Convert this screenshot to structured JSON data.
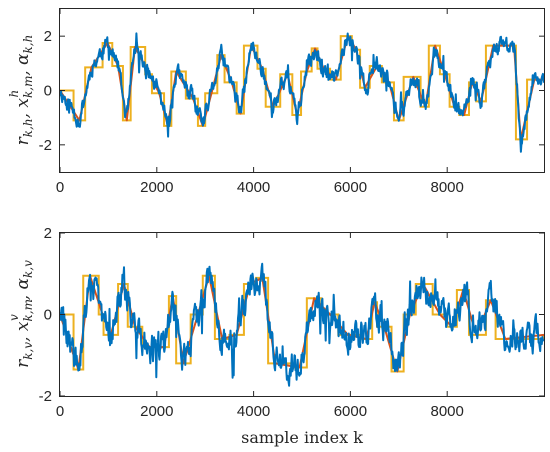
{
  "chart_data": [
    {
      "type": "line",
      "ylabel": "r_{k,h}, x^h_{k,m}, α_{k,h}",
      "xlabel": "",
      "xlim": [
        0,
        10000
      ],
      "ylim": [
        -3,
        3
      ],
      "xticks": [
        "0",
        "2000",
        "4000",
        "6000",
        "8000"
      ],
      "yticks": [
        "-2",
        "0",
        "2"
      ],
      "grid": false,
      "legend": "none",
      "series": [
        {
          "role": "reference (step)",
          "color": "#EDB120",
          "steps": [
            [
              0,
              0
            ],
            [
              280,
              -1.1
            ],
            [
              520,
              0.85
            ],
            [
              880,
              1.75
            ],
            [
              1080,
              0.9
            ],
            [
              1300,
              -1.1
            ],
            [
              1460,
              1.6
            ],
            [
              1760,
              0.6
            ],
            [
              1900,
              -0.1
            ],
            [
              2150,
              -1.3
            ],
            [
              2300,
              0.7
            ],
            [
              2600,
              -0.3
            ],
            [
              2850,
              -1.3
            ],
            [
              3000,
              -0.1
            ],
            [
              3250,
              1.3
            ],
            [
              3400,
              0.3
            ],
            [
              3650,
              -0.85
            ],
            [
              3800,
              1.65
            ],
            [
              4080,
              0.8
            ],
            [
              4250,
              -0.6
            ],
            [
              4550,
              0.6
            ],
            [
              4800,
              -0.9
            ],
            [
              4980,
              0.7
            ],
            [
              5200,
              1.55
            ],
            [
              5320,
              0.8
            ],
            [
              5580,
              0.4
            ],
            [
              5800,
              2.0
            ],
            [
              6030,
              1.5
            ],
            [
              6200,
              0.1
            ],
            [
              6400,
              0.9
            ],
            [
              6650,
              0.3
            ],
            [
              6900,
              -1.1
            ],
            [
              7100,
              0.5
            ],
            [
              7450,
              -0.6
            ],
            [
              7620,
              1.65
            ],
            [
              7850,
              0.6
            ],
            [
              8050,
              -0.6
            ],
            [
              8250,
              -0.9
            ],
            [
              8450,
              0.3
            ],
            [
              8600,
              -0.4
            ],
            [
              8800,
              1.65
            ],
            [
              9050,
              1.65
            ],
            [
              9350,
              1.65
            ],
            [
              9420,
              -1.8
            ],
            [
              9650,
              0.4
            ],
            [
              10000,
              0.4
            ]
          ]
        },
        {
          "role": "filtered estimate (smooth)",
          "color": "#D95319",
          "smooth_points": [
            [
              0,
              0
            ],
            [
              400,
              -1.1
            ],
            [
              650,
              0.85
            ],
            [
              980,
              1.75
            ],
            [
              1200,
              0.9
            ],
            [
              1380,
              -1.1
            ],
            [
              1550,
              1.6
            ],
            [
              1850,
              0.6
            ],
            [
              2050,
              -0.1
            ],
            [
              2230,
              -1.3
            ],
            [
              2400,
              0.7
            ],
            [
              2750,
              -0.3
            ],
            [
              2950,
              -1.3
            ],
            [
              3130,
              -0.1
            ],
            [
              3330,
              1.3
            ],
            [
              3550,
              0.3
            ],
            [
              3730,
              -0.85
            ],
            [
              3950,
              1.65
            ],
            [
              4180,
              0.8
            ],
            [
              4400,
              -0.6
            ],
            [
              4700,
              0.6
            ],
            [
              4900,
              -0.9
            ],
            [
              5100,
              0.7
            ],
            [
              5270,
              1.55
            ],
            [
              5450,
              0.8
            ],
            [
              5700,
              0.4
            ],
            [
              5950,
              2.0
            ],
            [
              6120,
              1.5
            ],
            [
              6300,
              0.1
            ],
            [
              6550,
              0.9
            ],
            [
              6800,
              0.3
            ],
            [
              7000,
              -1.1
            ],
            [
              7300,
              0.5
            ],
            [
              7550,
              -0.6
            ],
            [
              7750,
              1.65
            ],
            [
              7950,
              0.6
            ],
            [
              8150,
              -0.6
            ],
            [
              8350,
              -0.9
            ],
            [
              8520,
              0.3
            ],
            [
              8700,
              -0.4
            ],
            [
              8950,
              1.65
            ],
            [
              9380,
              1.65
            ],
            [
              9520,
              -1.8
            ],
            [
              9800,
              0.4
            ],
            [
              10000,
              0.4
            ]
          ]
        },
        {
          "role": "noisy measurement",
          "color": "#0072BD",
          "noise_amplitude": 0.25,
          "noise_seed": 11
        }
      ]
    },
    {
      "type": "line",
      "ylabel": "r_{k,v}, x^v_{k,m}, α_{k,v}",
      "xlabel": "sample index k",
      "xlim": [
        0,
        10000
      ],
      "ylim": [
        -2,
        2
      ],
      "xticks": [
        "0",
        "2000",
        "4000",
        "6000",
        "8000"
      ],
      "yticks": [
        "-2",
        "0",
        "2"
      ],
      "grid": false,
      "legend": "none",
      "series": [
        {
          "role": "reference (step)",
          "color": "#EDB120",
          "steps": [
            [
              0,
              0
            ],
            [
              280,
              -1.35
            ],
            [
              480,
              0.95
            ],
            [
              800,
              0.0
            ],
            [
              900,
              -0.5
            ],
            [
              1200,
              0.75
            ],
            [
              1400,
              -0.3
            ],
            [
              1700,
              -0.8
            ],
            [
              2000,
              -0.8
            ],
            [
              2250,
              0.45
            ],
            [
              2400,
              -1.2
            ],
            [
              2700,
              0.0
            ],
            [
              2950,
              0.95
            ],
            [
              3200,
              -0.6
            ],
            [
              3500,
              -0.5
            ],
            [
              3800,
              0.75
            ],
            [
              4050,
              0.9
            ],
            [
              4300,
              -1.2
            ],
            [
              4800,
              -1.3
            ],
            [
              5100,
              0.4
            ],
            [
              5400,
              0.0
            ],
            [
              5750,
              -0.5
            ],
            [
              6200,
              -0.6
            ],
            [
              6450,
              0.3
            ],
            [
              6550,
              -0.3
            ],
            [
              6850,
              -1.4
            ],
            [
              7100,
              0.0
            ],
            [
              7350,
              0.75
            ],
            [
              7700,
              0.0
            ],
            [
              8000,
              -0.3
            ],
            [
              8200,
              0.6
            ],
            [
              8450,
              -0.5
            ],
            [
              8800,
              0.35
            ],
            [
              9000,
              -0.6
            ],
            [
              9400,
              -0.6
            ],
            [
              10000,
              -0.5
            ]
          ]
        },
        {
          "role": "filtered estimate (smooth)",
          "color": "#D95319",
          "smooth_points": [
            [
              0,
              0
            ],
            [
              380,
              -1.35
            ],
            [
              620,
              0.95
            ],
            [
              880,
              0.0
            ],
            [
              1050,
              -0.5
            ],
            [
              1320,
              0.75
            ],
            [
              1550,
              -0.3
            ],
            [
              1850,
              -0.8
            ],
            [
              2150,
              -0.8
            ],
            [
              2330,
              0.45
            ],
            [
              2550,
              -1.2
            ],
            [
              2850,
              0.0
            ],
            [
              3080,
              0.95
            ],
            [
              3350,
              -0.6
            ],
            [
              3650,
              -0.5
            ],
            [
              3930,
              0.75
            ],
            [
              4180,
              0.9
            ],
            [
              4450,
              -1.2
            ],
            [
              4950,
              -1.3
            ],
            [
              5250,
              0.4
            ],
            [
              5580,
              0.0
            ],
            [
              5950,
              -0.5
            ],
            [
              6330,
              -0.6
            ],
            [
              6500,
              0.3
            ],
            [
              6700,
              -0.3
            ],
            [
              6970,
              -1.4
            ],
            [
              7230,
              0.0
            ],
            [
              7500,
              0.75
            ],
            [
              7850,
              0.0
            ],
            [
              8100,
              -0.3
            ],
            [
              8330,
              0.6
            ],
            [
              8600,
              -0.5
            ],
            [
              8900,
              0.35
            ],
            [
              9200,
              -0.6
            ],
            [
              10000,
              -0.5
            ]
          ]
        },
        {
          "role": "noisy measurement",
          "color": "#0072BD",
          "noise_amplitude": 0.3,
          "noise_seed": 29
        }
      ]
    }
  ]
}
